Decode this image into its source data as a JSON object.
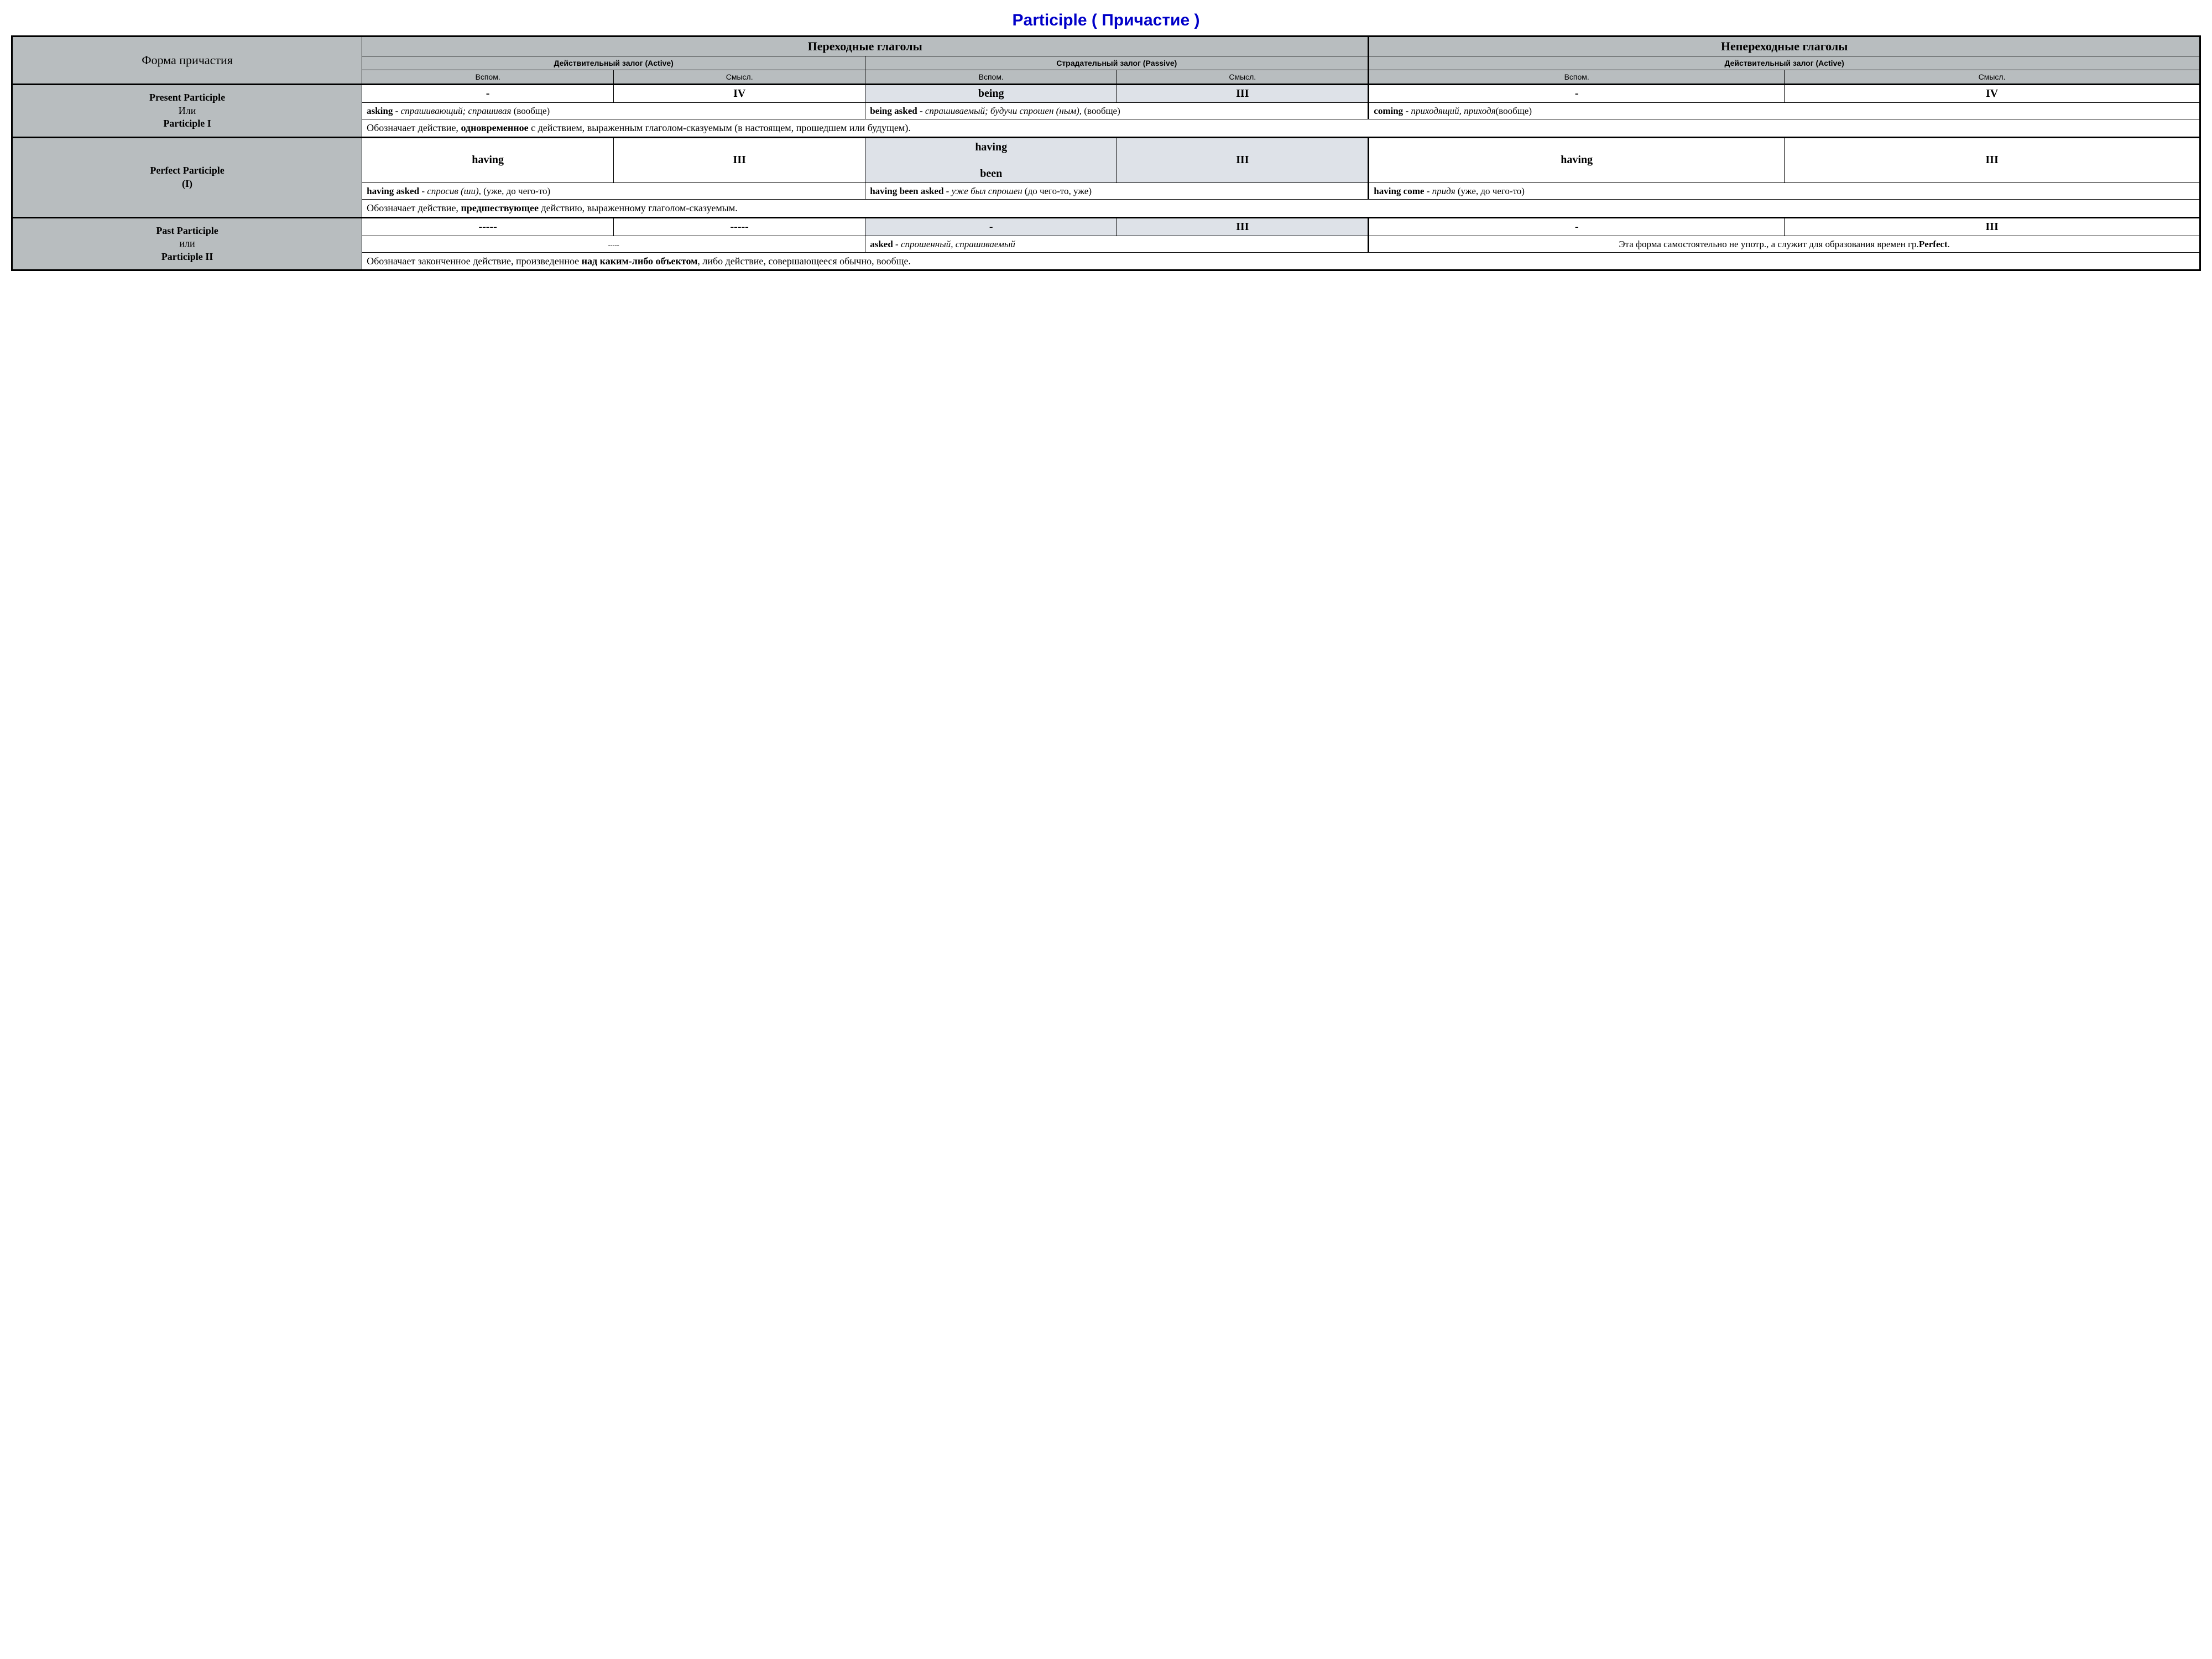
{
  "title": "Participle  ( Причастие )",
  "headers": {
    "form": "Форма причастия",
    "transitive": "Переходные глаголы",
    "intransitive": "Непереходные глаголы",
    "active": "Действительный залог (Active)",
    "passive": "Страдательный залог (Passive)",
    "active2": "Действительный залог (Active)",
    "aux": "Вспом.",
    "mean": "Смысл."
  },
  "rows": {
    "present": {
      "label_html": "<b>Present Participle</b><br>Или<br><b>Participle I</b>",
      "a1": "-",
      "a2": "IV",
      "p1": "being",
      "p2": "III",
      "i1": "-",
      "i2": "IV",
      "ex_active_html": "<b>asking</b> - <i>спрашивающий; спрашивая</i> (вообще)",
      "ex_passive_html": "<b>being asked</b> - <i>спрашиваемый; будучи спрошен (ным),</i> (вообще)",
      "ex_intr_html": "<b>coming</b> - <i>приходящий, приходя</i>(вообще)",
      "note_html": "Обозначает действие, <b>одновременное</b> с действием, выраженным глаголом-сказуемым (в настоящем, прошедшем или будущем)."
    },
    "perfect": {
      "label_html": "<b>Perfect Participle<br>(I)</b>",
      "a1": "having",
      "a2": "III",
      "p1_html": "having<br><br>been",
      "p2": "III",
      "i1": "having",
      "i2": "III",
      "ex_active_html": "<b>having asked</b> - <i>спросив (ши)</i>, (уже, до чего-то)",
      "ex_passive_html": "<b>having been asked</b> - <i>уже был спрошен</i> (до чего-то, уже)",
      "ex_intr_html": "<b>having come</b> - <i>придя</i> (уже, до чего-то)",
      "note_html": "Обозначает действие, <b>предшествующее</b> действию, выраженному глаголом-сказуемым."
    },
    "past": {
      "label_html": "<b>Past Participle</b><br>или<br><b>Participle II</b>",
      "a1": "-----",
      "a2": "-----",
      "p1": "-",
      "p2": "III",
      "i1": "-",
      "i2": "III",
      "ex_active_html": "<span style='font-size:12px;'>-----</span>",
      "ex_passive_html": "<b>asked</b> - <i>спрошенный, спрашиваемый</i>",
      "ex_intr_html": "Эта форма самостоятельно не употр., а служит для образования времен гр.<b>Perfect</b>.",
      "note_html": "Обозначает законченное действие, произведенное <b>над каким-либо объектом</b>, либо действие, совершающееся обычно, вообще."
    }
  }
}
